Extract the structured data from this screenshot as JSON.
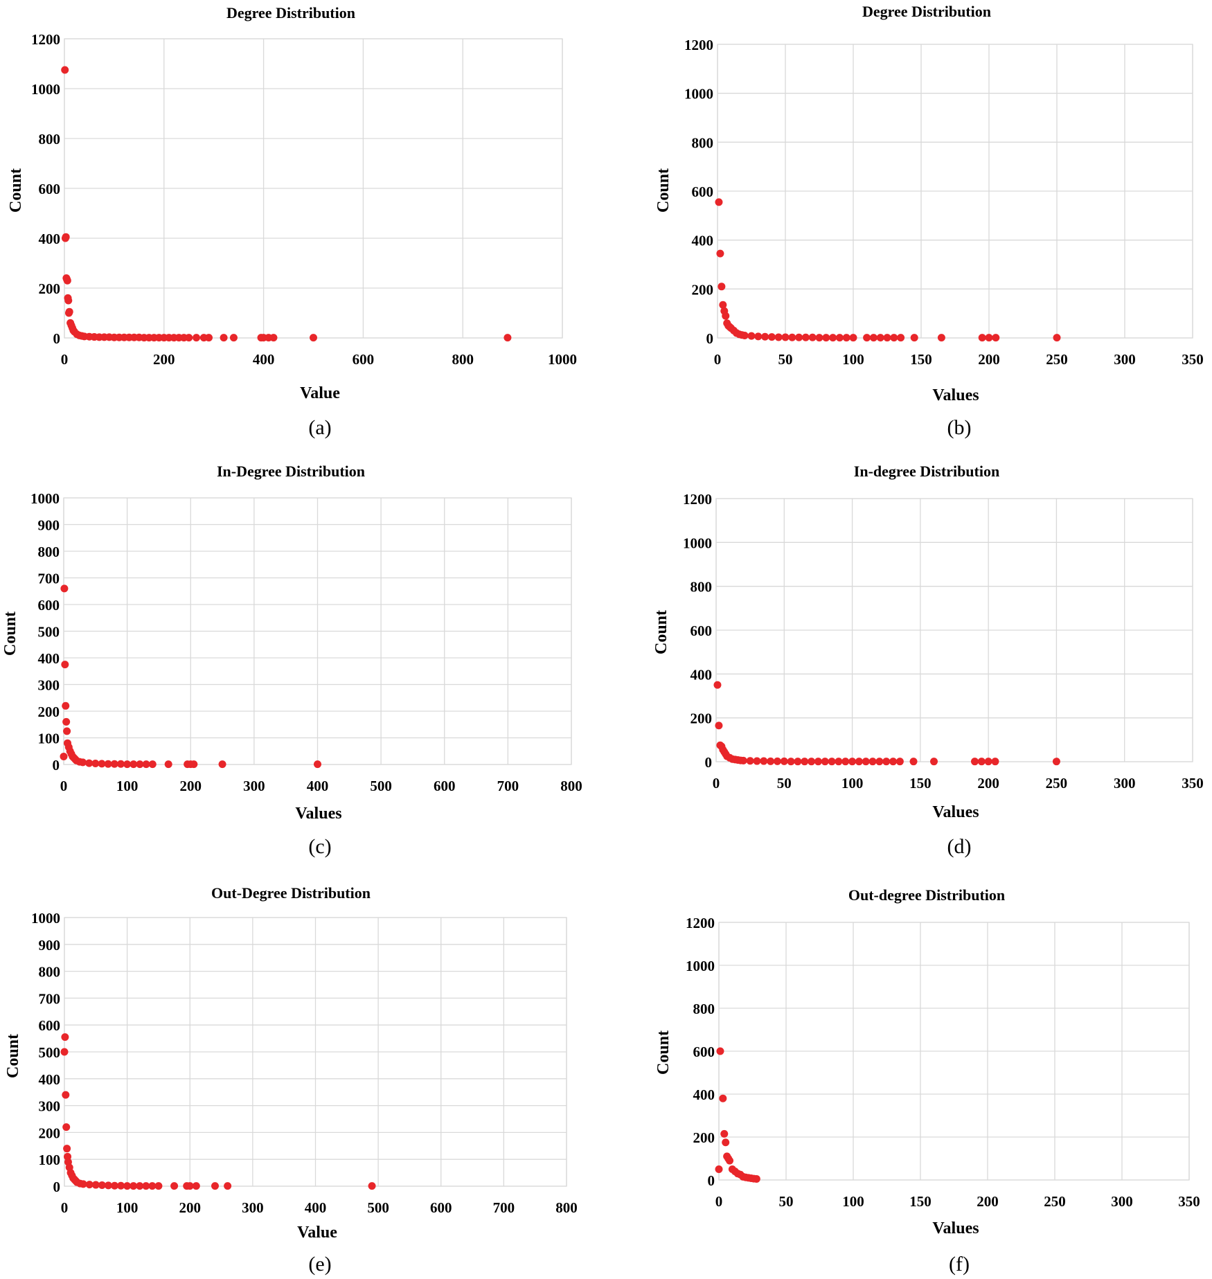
{
  "colors": {
    "marker": "#e8262a",
    "grid": "#d9d9d9"
  },
  "chart_data": [
    {
      "type": "scatter",
      "panel": "a",
      "caption": "(a)",
      "title": "Degree Distribution",
      "xlabel": "Value",
      "ylabel": "Count",
      "xlim": [
        0,
        1000
      ],
      "ylim": [
        0,
        1200
      ],
      "xticks": [
        0,
        200,
        400,
        600,
        800,
        1000
      ],
      "xtick_labels": [
        "0",
        "200",
        "400",
        "600",
        "800",
        "1000"
      ],
      "yticks": [
        0,
        200,
        400,
        600,
        800,
        1000,
        1200
      ],
      "ytick_labels": [
        "0",
        "200",
        "400",
        "600",
        "800",
        "1000",
        "1200"
      ],
      "grid": true,
      "x": [
        1,
        2,
        3,
        4,
        5,
        6,
        7,
        8,
        9,
        10,
        12,
        14,
        16,
        18,
        20,
        25,
        30,
        35,
        40,
        50,
        60,
        70,
        80,
        90,
        100,
        110,
        120,
        130,
        140,
        150,
        160,
        170,
        180,
        190,
        200,
        210,
        220,
        230,
        240,
        250,
        265,
        280,
        290,
        320,
        340,
        395,
        400,
        410,
        420,
        500,
        890
      ],
      "y": [
        1075,
        400,
        405,
        240,
        235,
        230,
        160,
        150,
        100,
        105,
        60,
        50,
        40,
        30,
        25,
        15,
        10,
        8,
        6,
        5,
        4,
        3,
        3,
        3,
        2,
        2,
        2,
        2,
        2,
        2,
        1,
        1,
        1,
        1,
        1,
        1,
        1,
        1,
        1,
        1,
        1,
        1,
        1,
        1,
        1,
        1,
        1,
        1,
        1,
        1,
        1
      ]
    },
    {
      "type": "scatter",
      "panel": "b",
      "caption": "(b)",
      "title": "Degree Distribution",
      "xlabel": "Values",
      "ylabel": "Count",
      "xlim": [
        0,
        350
      ],
      "ylim": [
        0,
        1200
      ],
      "xticks": [
        0,
        50,
        100,
        150,
        200,
        250,
        300,
        350
      ],
      "xtick_labels": [
        "0",
        "50",
        "100",
        "150",
        "200",
        "250",
        "300",
        "350"
      ],
      "yticks": [
        0,
        200,
        400,
        600,
        800,
        1000,
        1200
      ],
      "ytick_labels": [
        "0",
        "200",
        "400",
        "600",
        "800",
        "1000",
        "1200"
      ],
      "grid": true,
      "x": [
        1,
        2,
        3,
        4,
        5,
        6,
        7,
        8,
        9,
        10,
        12,
        14,
        16,
        18,
        20,
        25,
        30,
        35,
        40,
        45,
        50,
        55,
        60,
        65,
        70,
        75,
        80,
        85,
        90,
        95,
        100,
        110,
        115,
        120,
        125,
        130,
        135,
        145,
        165,
        195,
        200,
        205,
        250
      ],
      "y": [
        555,
        345,
        210,
        135,
        110,
        90,
        60,
        50,
        45,
        40,
        30,
        20,
        15,
        12,
        10,
        8,
        6,
        5,
        4,
        3,
        3,
        2,
        2,
        2,
        2,
        1,
        1,
        1,
        1,
        1,
        1,
        1,
        1,
        1,
        1,
        1,
        1,
        1,
        1,
        1,
        1,
        1,
        1
      ]
    },
    {
      "type": "scatter",
      "panel": "c",
      "caption": "(c)",
      "title": "In-Degree Distribution",
      "xlabel": "Values",
      "ylabel": "Count",
      "xlim": [
        0,
        800
      ],
      "ylim": [
        0,
        1000
      ],
      "xticks": [
        0,
        100,
        200,
        300,
        400,
        500,
        600,
        700,
        800
      ],
      "xtick_labels": [
        "0",
        "100",
        "200",
        "300",
        "400",
        "500",
        "600",
        "700",
        "800"
      ],
      "yticks": [
        0,
        100,
        200,
        300,
        400,
        500,
        600,
        700,
        800,
        900,
        1000
      ],
      "ytick_labels": [
        "0",
        "100",
        "200",
        "300",
        "400",
        "500",
        "600",
        "700",
        "800",
        "900",
        "1000"
      ],
      "grid": true,
      "x": [
        0,
        1,
        2,
        3,
        4,
        5,
        6,
        8,
        10,
        12,
        14,
        16,
        18,
        20,
        25,
        30,
        40,
        50,
        60,
        70,
        80,
        90,
        100,
        110,
        120,
        130,
        140,
        165,
        195,
        200,
        205,
        250,
        400
      ],
      "y": [
        30,
        660,
        375,
        220,
        160,
        125,
        80,
        65,
        50,
        40,
        30,
        25,
        20,
        15,
        10,
        8,
        5,
        4,
        3,
        2,
        2,
        2,
        1,
        1,
        1,
        1,
        1,
        1,
        1,
        1,
        1,
        1,
        1
      ]
    },
    {
      "type": "scatter",
      "panel": "d",
      "caption": "(d)",
      "title": "In-degree Distribution",
      "xlabel": "Values",
      "ylabel": "Count",
      "xlim": [
        0,
        350
      ],
      "ylim": [
        0,
        1200
      ],
      "xticks": [
        0,
        50,
        100,
        150,
        200,
        250,
        300,
        350
      ],
      "xtick_labels": [
        "0",
        "50",
        "100",
        "150",
        "200",
        "250",
        "300",
        "350"
      ],
      "yticks": [
        0,
        200,
        400,
        600,
        800,
        1000,
        1200
      ],
      "ytick_labels": [
        "0",
        "200",
        "400",
        "600",
        "800",
        "1000",
        "1200"
      ],
      "grid": true,
      "x": [
        1,
        2,
        3,
        4,
        5,
        6,
        7,
        8,
        10,
        12,
        14,
        16,
        18,
        20,
        25,
        30,
        35,
        40,
        45,
        50,
        55,
        60,
        65,
        70,
        75,
        80,
        85,
        90,
        95,
        100,
        105,
        110,
        115,
        120,
        125,
        130,
        135,
        145,
        160,
        190,
        195,
        200,
        205,
        250
      ],
      "y": [
        350,
        165,
        75,
        70,
        55,
        45,
        35,
        25,
        18,
        12,
        10,
        8,
        6,
        5,
        4,
        3,
        3,
        2,
        2,
        2,
        1,
        1,
        1,
        1,
        1,
        1,
        1,
        1,
        1,
        1,
        1,
        1,
        1,
        1,
        1,
        1,
        1,
        1,
        1,
        1,
        1,
        1,
        1,
        1
      ]
    },
    {
      "type": "scatter",
      "panel": "e",
      "caption": "(e)",
      "title": "Out-Degree Distribution",
      "xlabel": "Value",
      "ylabel": "Count",
      "xlim": [
        0,
        800
      ],
      "ylim": [
        0,
        1000
      ],
      "xticks": [
        0,
        100,
        200,
        300,
        400,
        500,
        600,
        700,
        800
      ],
      "xtick_labels": [
        "0",
        "100",
        "200",
        "300",
        "400",
        "500",
        "600",
        "700",
        "800"
      ],
      "yticks": [
        0,
        100,
        200,
        300,
        400,
        500,
        600,
        700,
        800,
        900,
        1000
      ],
      "ytick_labels": [
        "0",
        "100",
        "200",
        "300",
        "400",
        "500",
        "600",
        "700",
        "800",
        "900",
        "1000"
      ],
      "grid": true,
      "x": [
        0,
        1,
        2,
        3,
        4,
        5,
        6,
        8,
        10,
        12,
        14,
        16,
        18,
        20,
        25,
        30,
        40,
        50,
        60,
        70,
        80,
        90,
        100,
        110,
        120,
        130,
        140,
        150,
        175,
        195,
        200,
        210,
        240,
        260,
        490
      ],
      "y": [
        500,
        555,
        340,
        220,
        140,
        110,
        90,
        70,
        50,
        40,
        30,
        25,
        20,
        15,
        10,
        8,
        6,
        5,
        4,
        3,
        2,
        2,
        1,
        1,
        1,
        1,
        1,
        1,
        1,
        1,
        1,
        1,
        1,
        1,
        1
      ]
    },
    {
      "type": "scatter",
      "panel": "f",
      "caption": "(f)",
      "title": "Out-degree Distribution",
      "xlabel": "Values",
      "ylabel": "Count",
      "xlim": [
        0,
        350
      ],
      "ylim": [
        0,
        1200
      ],
      "xticks": [
        0,
        50,
        100,
        150,
        200,
        250,
        300,
        350
      ],
      "xtick_labels": [
        "0",
        "50",
        "100",
        "150",
        "200",
        "250",
        "300",
        "350"
      ],
      "yticks": [
        0,
        200,
        400,
        600,
        800,
        1000,
        1200
      ],
      "ytick_labels": [
        "0",
        "200",
        "400",
        "600",
        "800",
        "1000",
        "1200"
      ],
      "grid": true,
      "x": [
        0,
        1,
        3,
        4,
        5,
        6,
        7,
        8,
        10,
        12,
        14,
        16,
        18,
        20,
        22,
        24,
        26,
        28
      ],
      "y": [
        50,
        600,
        380,
        215,
        175,
        110,
        100,
        90,
        50,
        40,
        30,
        25,
        15,
        12,
        10,
        8,
        6,
        5
      ]
    }
  ]
}
